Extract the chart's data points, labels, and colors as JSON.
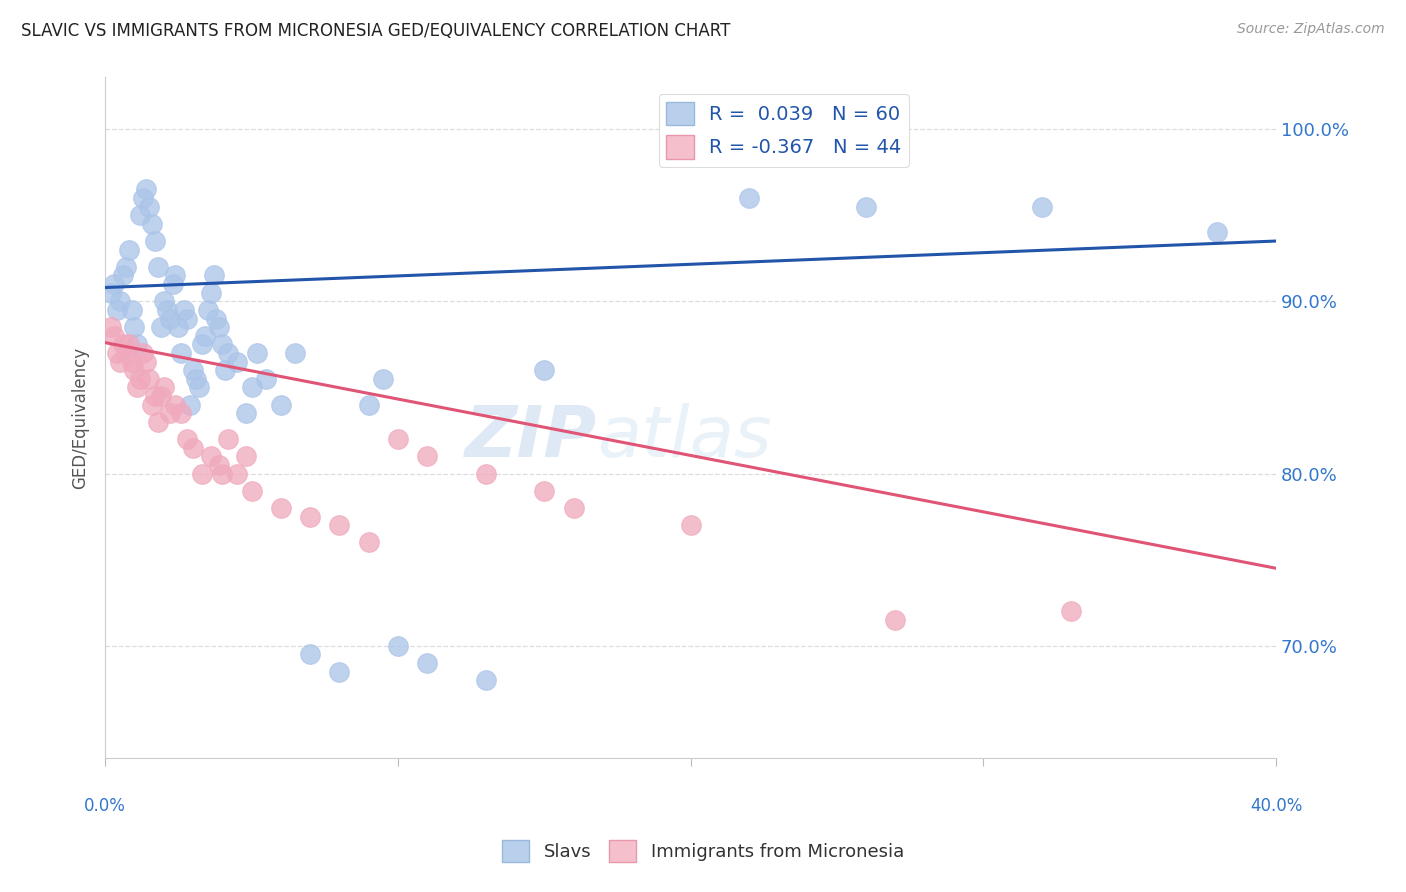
{
  "title": "SLAVIC VS IMMIGRANTS FROM MICRONESIA GED/EQUIVALENCY CORRELATION CHART",
  "source": "Source: ZipAtlas.com",
  "ylabel": "GED/Equivalency",
  "ytick_values": [
    0.7,
    0.8,
    0.9,
    1.0
  ],
  "xlim": [
    0.0,
    0.4
  ],
  "ylim": [
    0.635,
    1.03
  ],
  "watermark": "ZIPatlas",
  "slavs_color": "#aac4e8",
  "micronesia_color": "#f0a8bc",
  "slavs_line_color": "#2255aa",
  "micronesia_line_color": "#e05575",
  "background_color": "#ffffff",
  "grid_color": "#dddddd",
  "slavs_x": [
    0.002,
    0.003,
    0.004,
    0.005,
    0.006,
    0.007,
    0.008,
    0.009,
    0.01,
    0.011,
    0.012,
    0.013,
    0.014,
    0.015,
    0.016,
    0.017,
    0.018,
    0.019,
    0.02,
    0.021,
    0.022,
    0.023,
    0.024,
    0.025,
    0.026,
    0.027,
    0.028,
    0.029,
    0.03,
    0.031,
    0.032,
    0.033,
    0.034,
    0.035,
    0.036,
    0.037,
    0.038,
    0.039,
    0.04,
    0.041,
    0.042,
    0.045,
    0.048,
    0.05,
    0.052,
    0.055,
    0.06,
    0.065,
    0.07,
    0.08,
    0.09,
    0.095,
    0.1,
    0.11,
    0.13,
    0.15,
    0.22,
    0.26,
    0.32,
    0.38
  ],
  "slavs_y": [
    0.905,
    0.91,
    0.895,
    0.9,
    0.915,
    0.92,
    0.93,
    0.895,
    0.885,
    0.875,
    0.95,
    0.96,
    0.965,
    0.955,
    0.945,
    0.935,
    0.92,
    0.885,
    0.9,
    0.895,
    0.89,
    0.91,
    0.915,
    0.885,
    0.87,
    0.895,
    0.89,
    0.84,
    0.86,
    0.855,
    0.85,
    0.875,
    0.88,
    0.895,
    0.905,
    0.915,
    0.89,
    0.885,
    0.875,
    0.86,
    0.87,
    0.865,
    0.835,
    0.85,
    0.87,
    0.855,
    0.84,
    0.87,
    0.695,
    0.685,
    0.84,
    0.855,
    0.7,
    0.69,
    0.68,
    0.86,
    0.96,
    0.955,
    0.955,
    0.94
  ],
  "micro_x": [
    0.002,
    0.003,
    0.004,
    0.005,
    0.006,
    0.007,
    0.008,
    0.009,
    0.01,
    0.011,
    0.012,
    0.013,
    0.014,
    0.015,
    0.016,
    0.017,
    0.018,
    0.019,
    0.02,
    0.022,
    0.024,
    0.026,
    0.028,
    0.03,
    0.033,
    0.036,
    0.039,
    0.04,
    0.042,
    0.045,
    0.048,
    0.05,
    0.06,
    0.07,
    0.08,
    0.09,
    0.1,
    0.11,
    0.13,
    0.15,
    0.16,
    0.2,
    0.27,
    0.33
  ],
  "micro_y": [
    0.885,
    0.88,
    0.87,
    0.865,
    0.875,
    0.87,
    0.875,
    0.865,
    0.86,
    0.85,
    0.855,
    0.87,
    0.865,
    0.855,
    0.84,
    0.845,
    0.83,
    0.845,
    0.85,
    0.835,
    0.84,
    0.835,
    0.82,
    0.815,
    0.8,
    0.81,
    0.805,
    0.8,
    0.82,
    0.8,
    0.81,
    0.79,
    0.78,
    0.775,
    0.77,
    0.76,
    0.82,
    0.81,
    0.8,
    0.79,
    0.78,
    0.77,
    0.715,
    0.72
  ],
  "slavs_line_x0": 0.0,
  "slavs_line_x1": 0.4,
  "slavs_line_y0": 0.908,
  "slavs_line_y1": 0.935,
  "micro_line_x0": 0.0,
  "micro_line_x1": 0.4,
  "micro_line_y0": 0.876,
  "micro_line_y1": 0.745
}
